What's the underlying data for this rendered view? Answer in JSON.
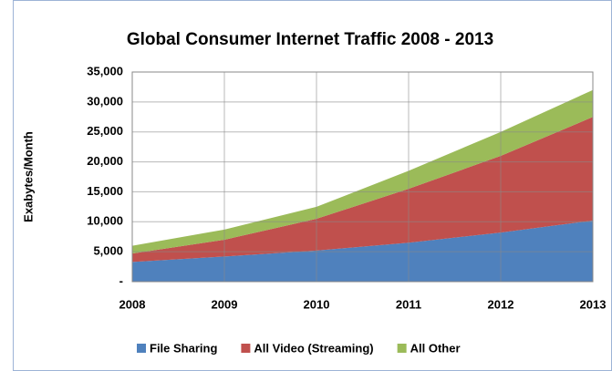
{
  "chart_data": {
    "type": "stacked_area",
    "title": "Global Consumer Internet Traffic 2008 - 2013",
    "y_label": "Exabytes/Month",
    "x": [
      2008,
      2009,
      2010,
      2011,
      2012,
      2013
    ],
    "xlim": [
      2008,
      2013
    ],
    "xticks": [
      2008,
      2009,
      2010,
      2011,
      2012,
      2013
    ],
    "ylim": [
      0,
      35000
    ],
    "yticks": [
      {
        "value": 0,
        "label": "-"
      },
      {
        "value": 5000,
        "label": "5,000"
      },
      {
        "value": 10000,
        "label": "10,000"
      },
      {
        "value": 15000,
        "label": "15,000"
      },
      {
        "value": 20000,
        "label": "20,000"
      },
      {
        "value": 25000,
        "label": "25,000"
      },
      {
        "value": 30000,
        "label": "30,000"
      },
      {
        "value": 35000,
        "label": "35,000"
      }
    ],
    "grid": true,
    "legend": "bottom",
    "series": [
      {
        "name": "File Sharing",
        "color": "#4f81bd",
        "values": [
          3300,
          4200,
          5200,
          6500,
          8200,
          10200
        ]
      },
      {
        "name": "All Video (Streaming)",
        "color": "#c0504d",
        "values": [
          1400,
          2800,
          5300,
          9000,
          12800,
          17300
        ]
      },
      {
        "name": "All Other",
        "color": "#9bbb59",
        "values": [
          1300,
          1700,
          2000,
          3000,
          4000,
          4500
        ]
      }
    ]
  }
}
